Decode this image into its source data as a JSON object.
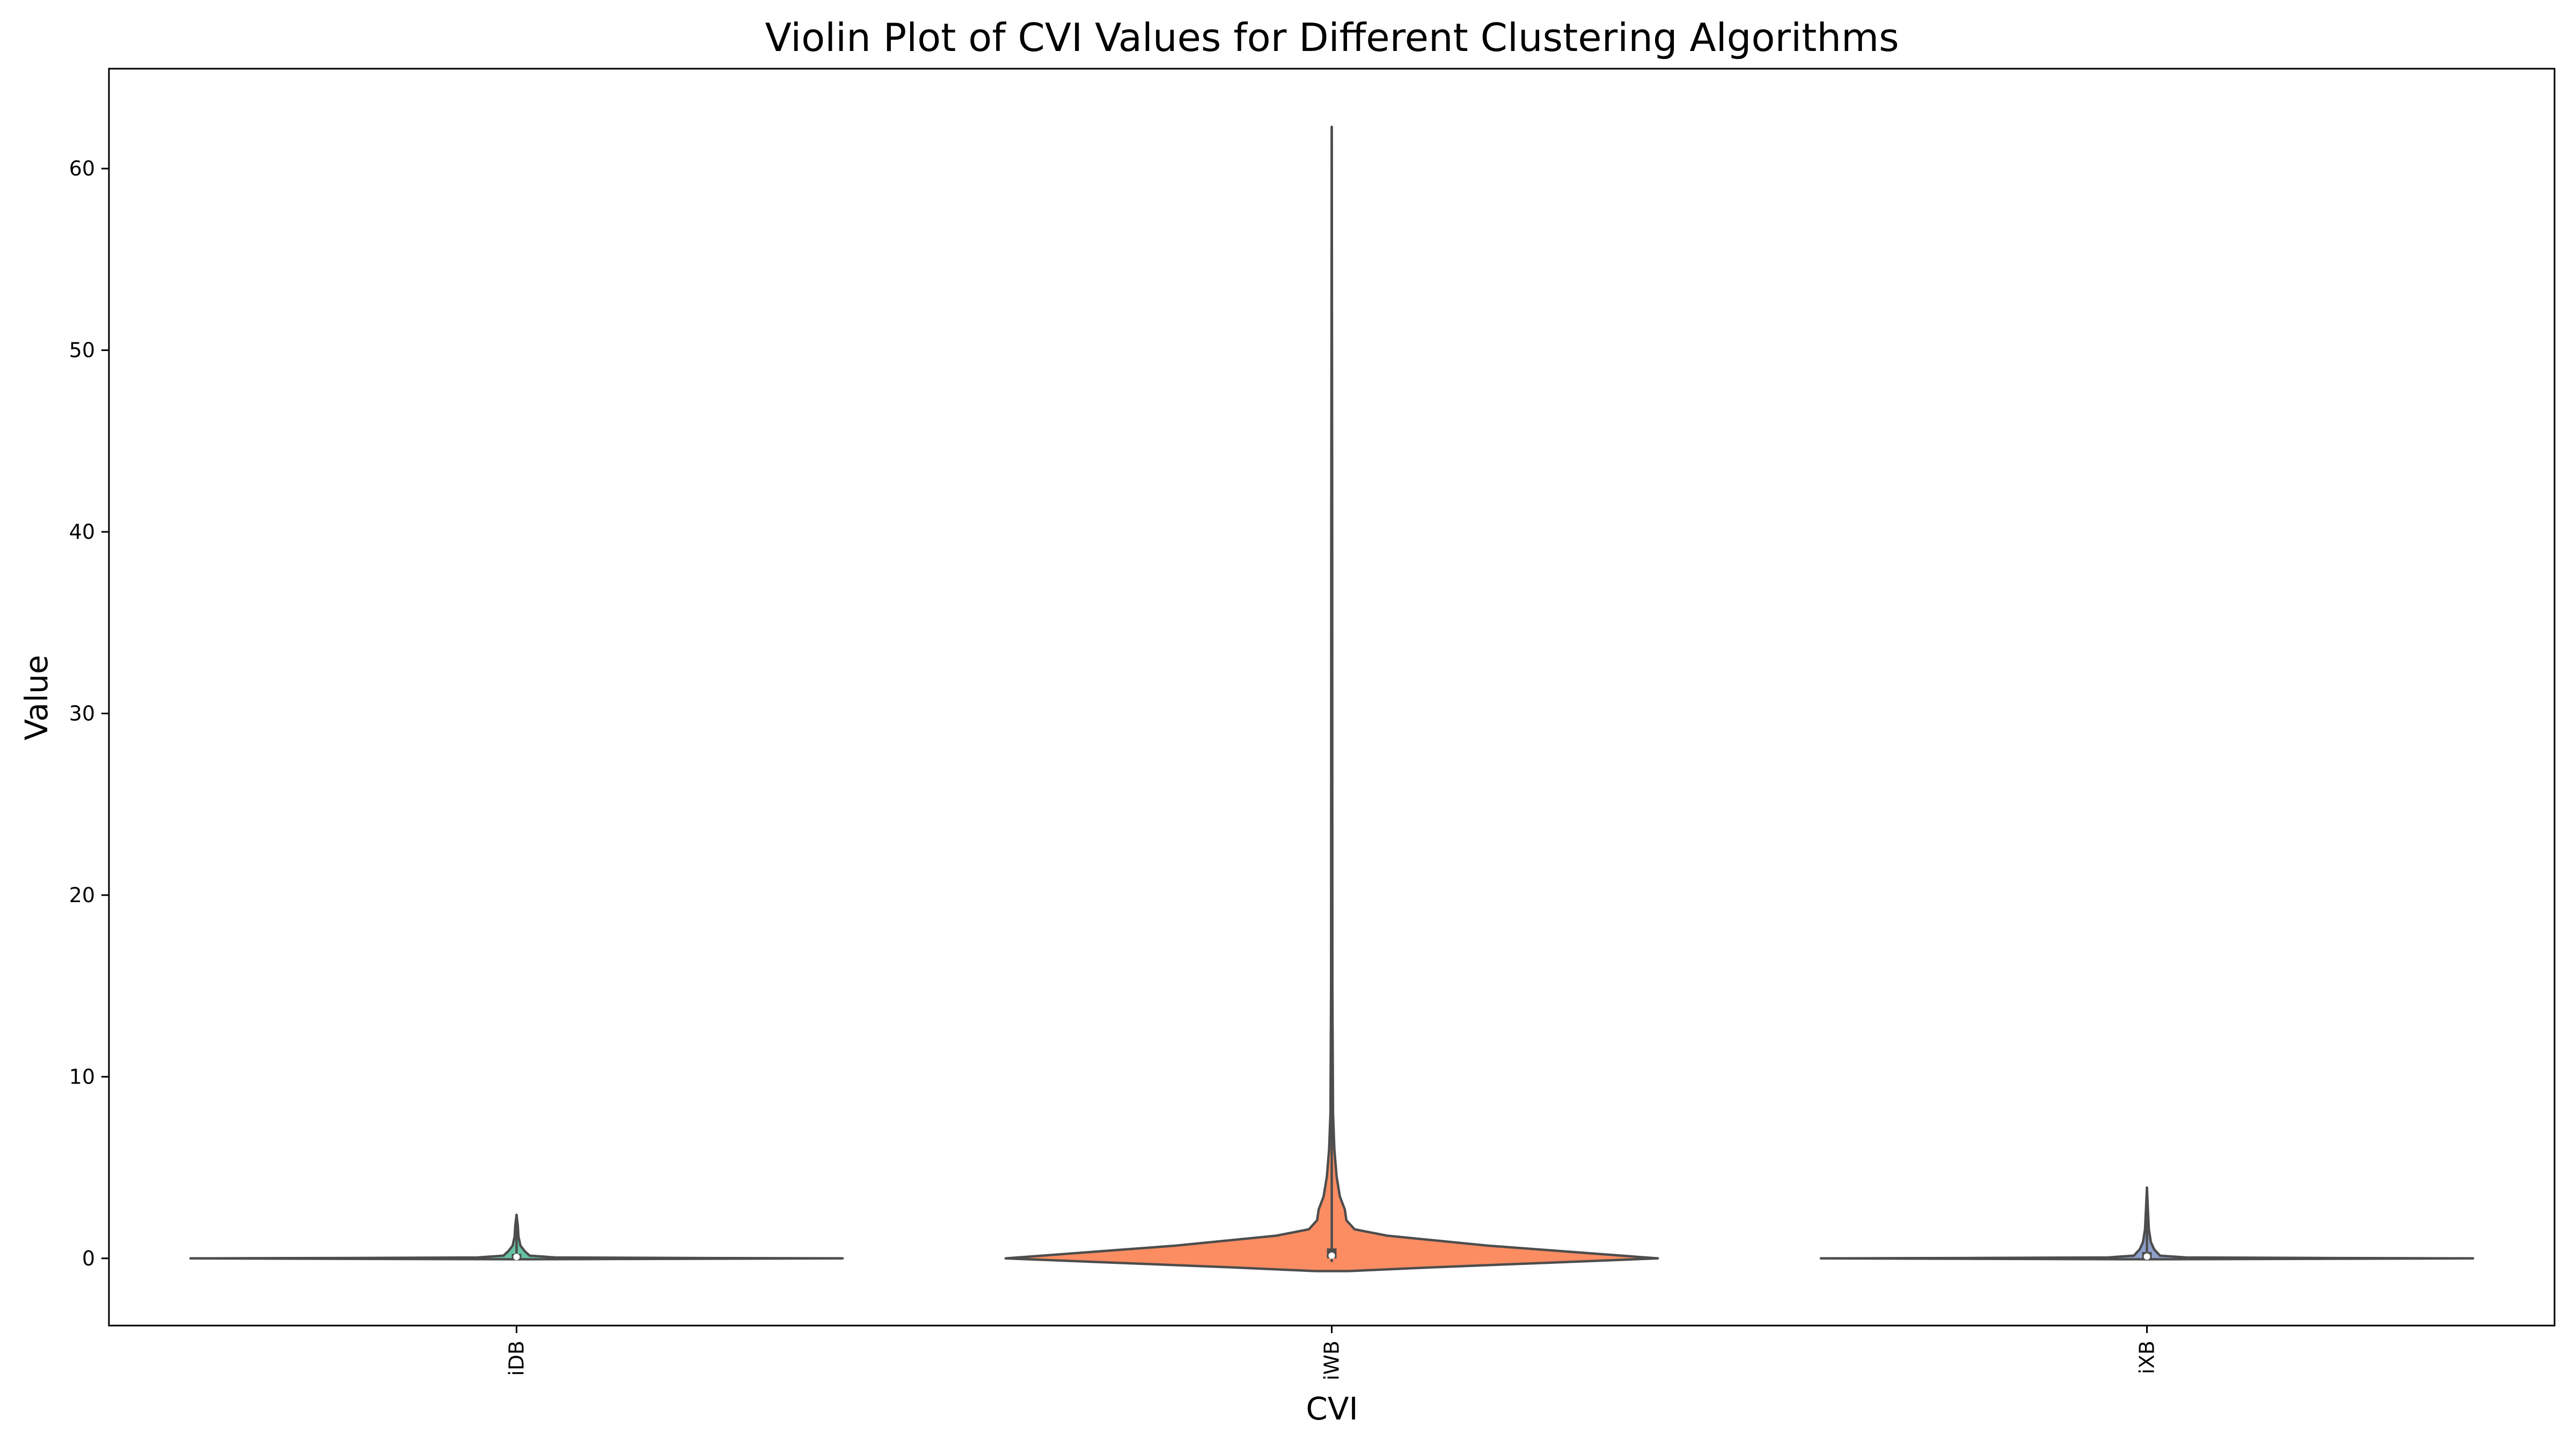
{
  "chart_data": {
    "type": "violin",
    "title": "Violin Plot of CVI Values for Different Clustering Algorithms",
    "xlabel": "CVI",
    "ylabel": "Value",
    "ylim": [
      -3.7,
      65.5
    ],
    "yticks": [
      0,
      10,
      20,
      30,
      40,
      50,
      60
    ],
    "grid": false,
    "categories": [
      "iDB",
      "iWB",
      "iXB"
    ],
    "colors": [
      "#66c2a5",
      "#fc8d62",
      "#8da0cb"
    ],
    "violins": [
      {
        "category": "iDB",
        "min": -0.05,
        "q1": 0.0,
        "median": 0.08,
        "q3": 0.25,
        "max": 2.4,
        "density": [
          [
            -0.05,
            0.0
          ],
          [
            0.0,
            1.0
          ],
          [
            0.02,
            0.55
          ],
          [
            0.05,
            0.12
          ],
          [
            0.15,
            0.04
          ],
          [
            0.4,
            0.025
          ],
          [
            0.7,
            0.012
          ],
          [
            1.2,
            0.006
          ],
          [
            1.8,
            0.004
          ],
          [
            2.4,
            0.0
          ]
        ]
      },
      {
        "category": "iWB",
        "min": -0.2,
        "q1": 0.0,
        "median": 0.15,
        "q3": 0.55,
        "max": 62.3,
        "density": [
          [
            -0.7,
            0.05
          ],
          [
            -0.5,
            0.3
          ],
          [
            0.0,
            1.0
          ],
          [
            0.7,
            0.48
          ],
          [
            1.25,
            0.17
          ],
          [
            1.6,
            0.07
          ],
          [
            2.1,
            0.045
          ],
          [
            2.7,
            0.04
          ],
          [
            3.4,
            0.025
          ],
          [
            4.5,
            0.015
          ],
          [
            6.0,
            0.008
          ],
          [
            8.0,
            0.004
          ],
          [
            15,
            0.002
          ],
          [
            40,
            0.0015
          ],
          [
            62.3,
            0.0
          ]
        ]
      },
      {
        "category": "iXB",
        "min": -0.05,
        "q1": 0.0,
        "median": 0.1,
        "q3": 0.35,
        "max": 3.9,
        "density": [
          [
            -0.05,
            0.0
          ],
          [
            0.0,
            1.0
          ],
          [
            0.02,
            0.55
          ],
          [
            0.05,
            0.12
          ],
          [
            0.15,
            0.04
          ],
          [
            0.5,
            0.022
          ],
          [
            0.9,
            0.012
          ],
          [
            1.6,
            0.006
          ],
          [
            2.7,
            0.003
          ],
          [
            3.9,
            0.0
          ]
        ]
      }
    ]
  }
}
